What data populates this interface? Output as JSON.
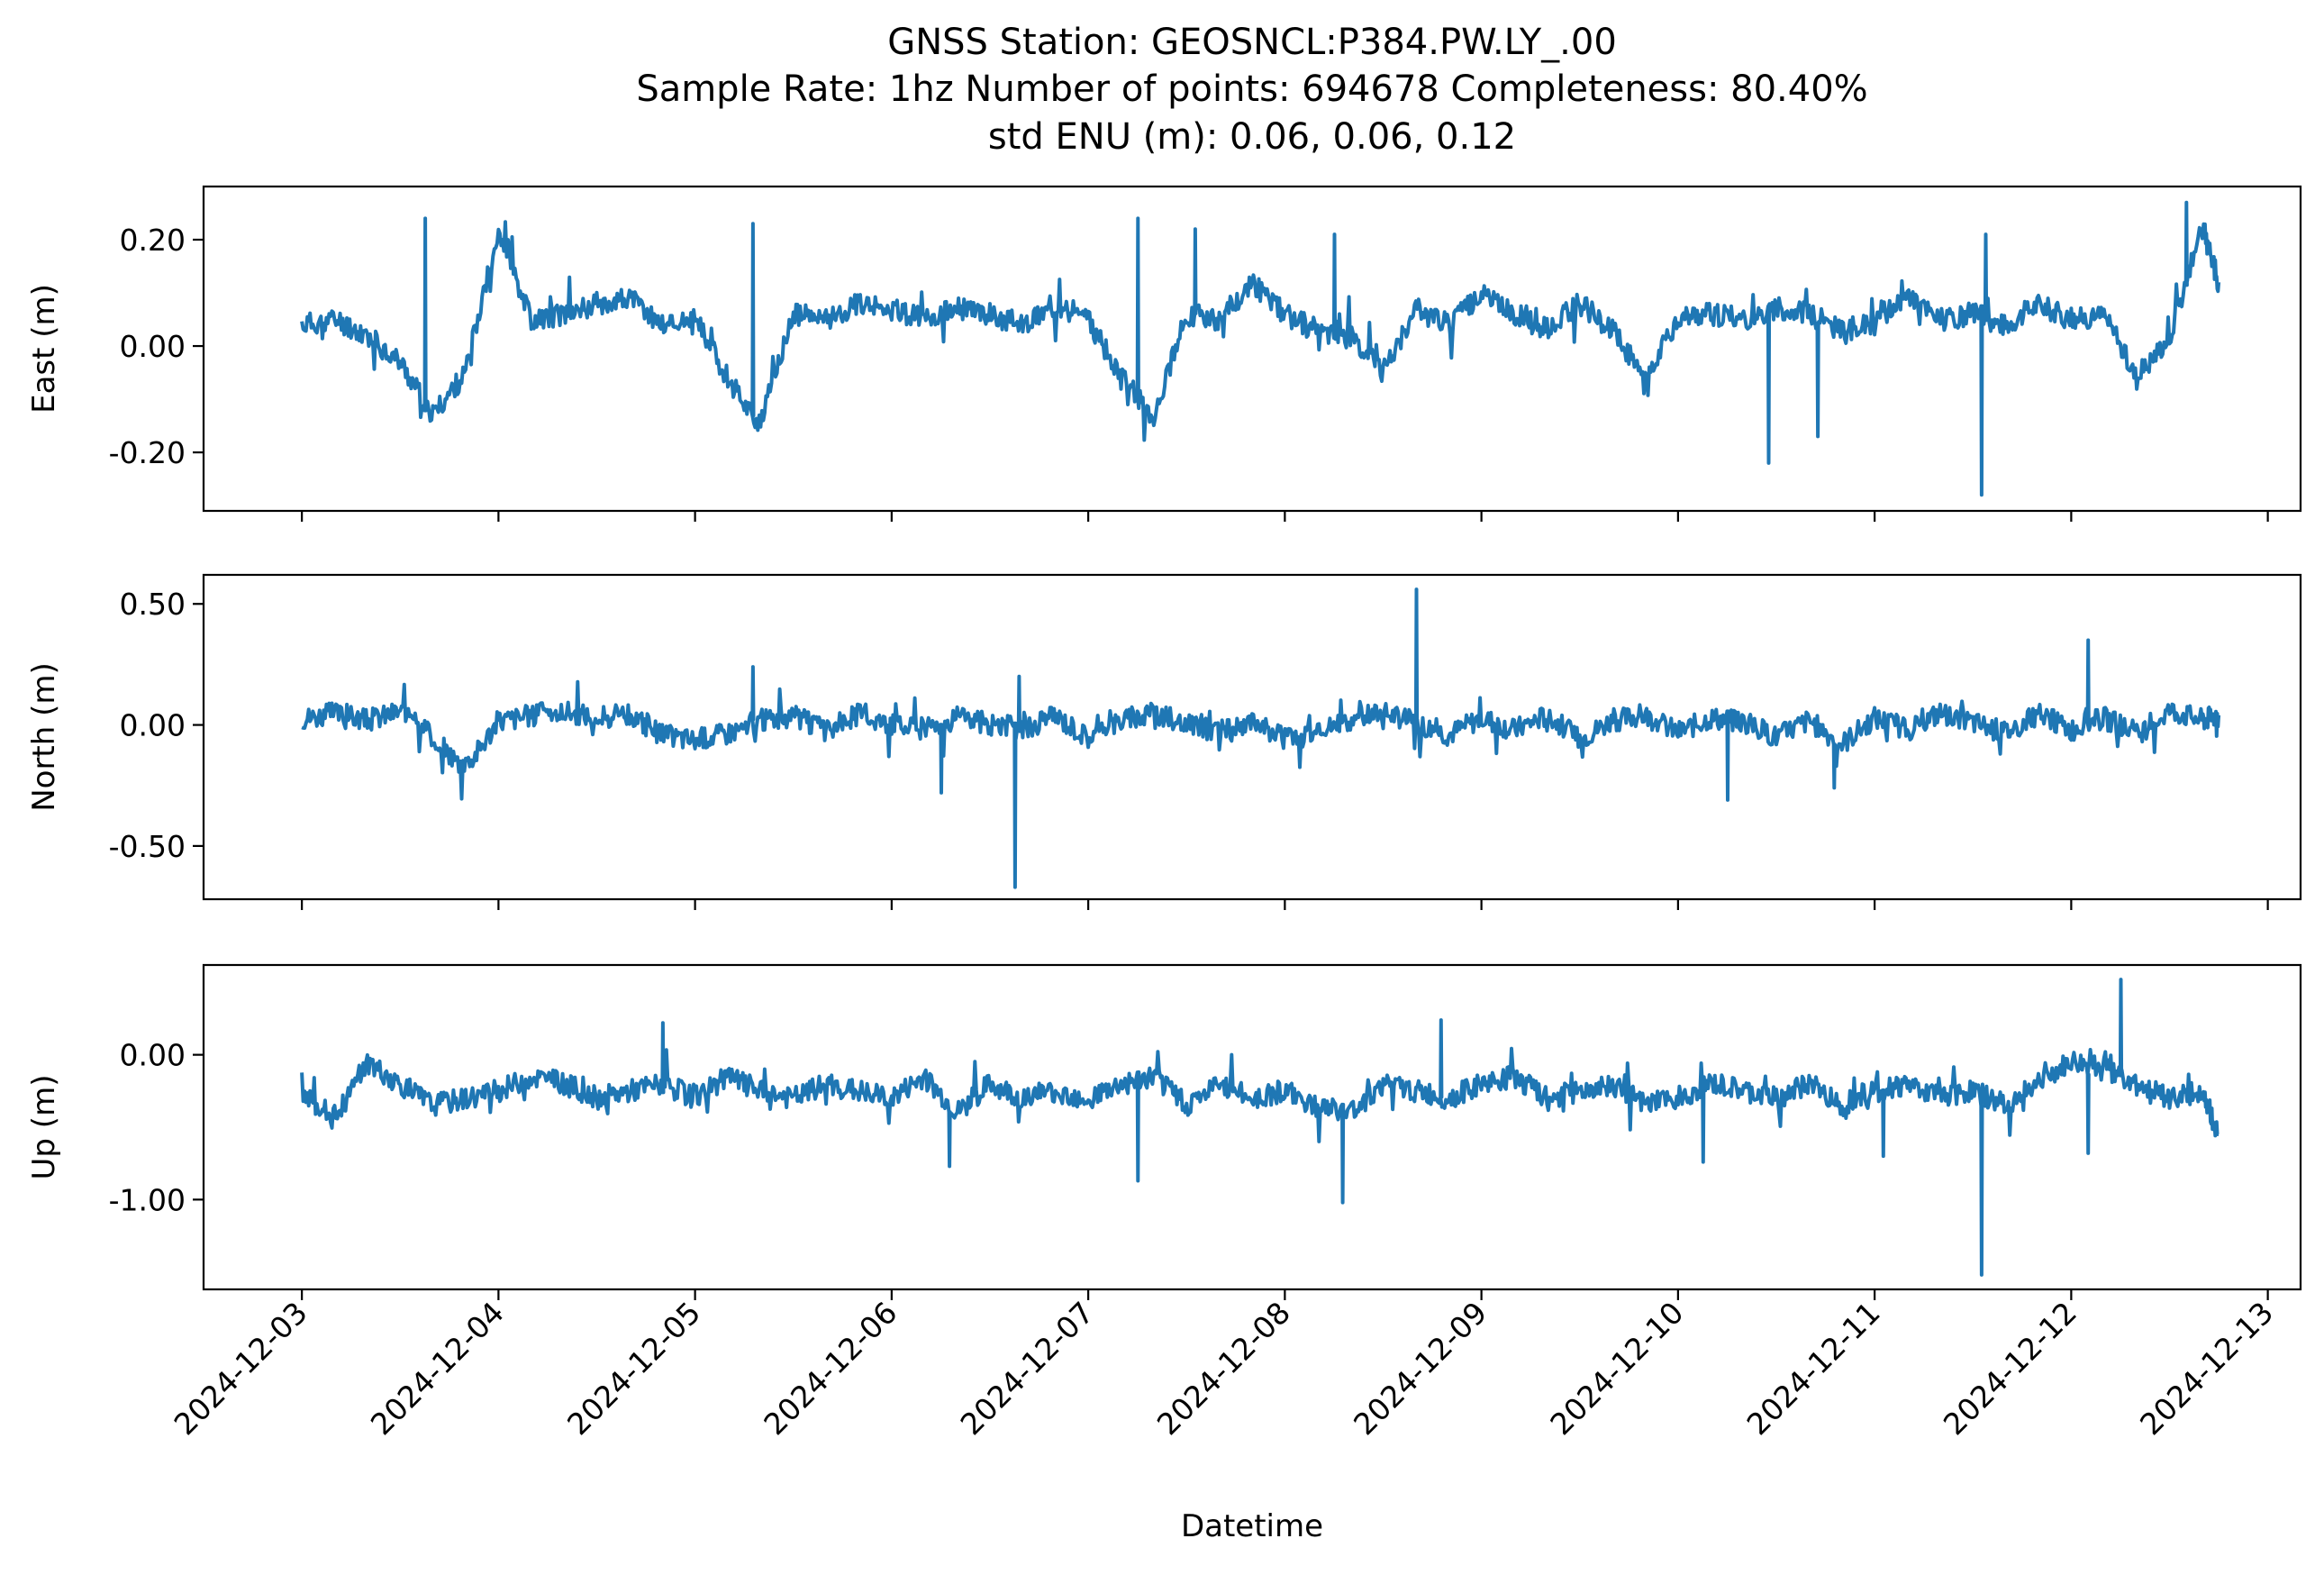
{
  "title": {
    "line1": "GNSS Station: GEOSNCL:P384.PW.LY_.00",
    "line2": "Sample Rate: 1hz   Number of points: 694678    Completeness:  80.40%",
    "line3": "std ENU (m):  0.06, 0.06, 0.12"
  },
  "xlabel": "Datetime",
  "colors": {
    "series": "#1f77b4",
    "axes": "#000000",
    "background": "#ffffff"
  },
  "chart_data": [
    {
      "type": "line",
      "panel": "east",
      "ylabel": "East (m)",
      "ylim": [
        -0.31,
        0.3
      ],
      "yticks": [
        0.2,
        0.0,
        -0.2
      ],
      "ytick_labels": [
        "0.20",
        "0.00",
        "-0.20"
      ],
      "xlim": [
        "2024-12-02T12:00",
        "2024-12-13T04:00"
      ],
      "xticks": [
        "2024-12-03",
        "2024-12-04",
        "2024-12-05",
        "2024-12-06",
        "2024-12-07",
        "2024-12-08",
        "2024-12-09",
        "2024-12-10",
        "2024-12-11",
        "2024-12-12",
        "2024-12-13"
      ],
      "show_xtick_labels": false,
      "series": [
        {
          "x": [
            "2024-12-03T00:00",
            "2024-12-03T04:00",
            "2024-12-03T08:00",
            "2024-12-03T12:00",
            "2024-12-03T16:00",
            "2024-12-03T20:00",
            "2024-12-04T00:00",
            "2024-12-04T04:00",
            "2024-12-04T08:00",
            "2024-12-04T12:00",
            "2024-12-04T16:00",
            "2024-12-04T20:00",
            "2024-12-05T00:00",
            "2024-12-05T04:00",
            "2024-12-05T08:00",
            "2024-12-05T12:00",
            "2024-12-05T16:00",
            "2024-12-05T20:00",
            "2024-12-06T00:00",
            "2024-12-06T04:00",
            "2024-12-06T08:00",
            "2024-12-06T12:00",
            "2024-12-06T16:00",
            "2024-12-06T20:00",
            "2024-12-07T00:00",
            "2024-12-07T04:00",
            "2024-12-07T08:00",
            "2024-12-07T12:00",
            "2024-12-07T16:00",
            "2024-12-07T20:00",
            "2024-12-08T00:00",
            "2024-12-08T04:00",
            "2024-12-08T08:00",
            "2024-12-08T12:00",
            "2024-12-08T16:00",
            "2024-12-08T20:00",
            "2024-12-09T00:00",
            "2024-12-09T04:00",
            "2024-12-09T08:00",
            "2024-12-09T12:00",
            "2024-12-09T16:00",
            "2024-12-09T20:00",
            "2024-12-10T00:00",
            "2024-12-10T04:00",
            "2024-12-10T08:00",
            "2024-12-10T12:00",
            "2024-12-10T16:00",
            "2024-12-10T20:00",
            "2024-12-11T00:00",
            "2024-12-11T04:00",
            "2024-12-11T08:00",
            "2024-12-11T12:00",
            "2024-12-11T16:00",
            "2024-12-11T20:00",
            "2024-12-12T00:00",
            "2024-12-12T04:00",
            "2024-12-12T08:00",
            "2024-12-12T12:00",
            "2024-12-12T16:00",
            "2024-12-12T18:00"
          ],
          "y": [
            0.04,
            0.05,
            0.02,
            -0.03,
            -0.13,
            -0.05,
            0.22,
            0.05,
            0.06,
            0.08,
            0.09,
            0.04,
            0.05,
            -0.06,
            -0.15,
            0.06,
            0.05,
            0.08,
            0.07,
            0.05,
            0.07,
            0.06,
            0.04,
            0.08,
            0.05,
            -0.06,
            -0.13,
            0.06,
            0.05,
            0.12,
            0.06,
            0.03,
            0.02,
            -0.05,
            0.07,
            0.04,
            0.1,
            0.06,
            0.03,
            0.08,
            0.03,
            -0.06,
            0.05,
            0.06,
            0.05,
            0.07,
            0.06,
            0.03,
            0.04,
            0.1,
            0.05,
            0.06,
            0.04,
            0.08,
            0.05,
            0.06,
            -0.06,
            0.02,
            0.22,
            0.12
          ],
          "spikes": [
            [
              "2024-12-03T15:00",
              0.24
            ],
            [
              "2024-12-05T07:00",
              0.23
            ],
            [
              "2024-12-07T06:00",
              0.24
            ],
            [
              "2024-12-07T13:00",
              0.22
            ],
            [
              "2024-12-08T06:00",
              0.21
            ],
            [
              "2024-12-10T11:00",
              -0.22
            ],
            [
              "2024-12-10T17:00",
              -0.17
            ],
            [
              "2024-12-11T13:00",
              -0.28
            ],
            [
              "2024-12-11T13:30",
              0.21
            ],
            [
              "2024-12-12T14:00",
              0.27
            ]
          ]
        }
      ]
    },
    {
      "type": "line",
      "panel": "north",
      "ylabel": "North (m)",
      "ylim": [
        -0.72,
        0.62
      ],
      "yticks": [
        0.5,
        0.0,
        -0.5
      ],
      "ytick_labels": [
        "0.50",
        "0.00",
        "-0.50"
      ],
      "xlim": [
        "2024-12-02T12:00",
        "2024-12-13T04:00"
      ],
      "xticks": [
        "2024-12-03",
        "2024-12-04",
        "2024-12-05",
        "2024-12-06",
        "2024-12-07",
        "2024-12-08",
        "2024-12-09",
        "2024-12-10",
        "2024-12-11",
        "2024-12-12",
        "2024-12-13"
      ],
      "show_xtick_labels": false,
      "series": [
        {
          "x": [
            "2024-12-03T00:00",
            "2024-12-03T04:00",
            "2024-12-03T08:00",
            "2024-12-03T12:00",
            "2024-12-03T16:00",
            "2024-12-03T20:00",
            "2024-12-04T00:00",
            "2024-12-04T04:00",
            "2024-12-04T08:00",
            "2024-12-04T12:00",
            "2024-12-04T16:00",
            "2024-12-04T20:00",
            "2024-12-05T00:00",
            "2024-12-05T04:00",
            "2024-12-05T08:00",
            "2024-12-05T12:00",
            "2024-12-05T16:00",
            "2024-12-05T20:00",
            "2024-12-06T00:00",
            "2024-12-06T04:00",
            "2024-12-06T08:00",
            "2024-12-06T12:00",
            "2024-12-06T16:00",
            "2024-12-06T20:00",
            "2024-12-07T00:00",
            "2024-12-07T04:00",
            "2024-12-07T08:00",
            "2024-12-07T12:00",
            "2024-12-07T16:00",
            "2024-12-07T20:00",
            "2024-12-08T00:00",
            "2024-12-08T04:00",
            "2024-12-08T08:00",
            "2024-12-08T12:00",
            "2024-12-08T16:00",
            "2024-12-08T20:00",
            "2024-12-09T00:00",
            "2024-12-09T04:00",
            "2024-12-09T08:00",
            "2024-12-09T12:00",
            "2024-12-09T16:00",
            "2024-12-09T20:00",
            "2024-12-10T00:00",
            "2024-12-10T04:00",
            "2024-12-10T08:00",
            "2024-12-10T12:00",
            "2024-12-10T16:00",
            "2024-12-10T20:00",
            "2024-12-11T00:00",
            "2024-12-11T04:00",
            "2024-12-11T08:00",
            "2024-12-11T12:00",
            "2024-12-11T16:00",
            "2024-12-11T20:00",
            "2024-12-12T00:00",
            "2024-12-12T04:00",
            "2024-12-12T08:00",
            "2024-12-12T12:00",
            "2024-12-12T16:00",
            "2024-12-12T18:00"
          ],
          "y": [
            0.03,
            0.05,
            0.02,
            0.06,
            -0.05,
            -0.18,
            0.02,
            0.04,
            0.06,
            0.03,
            0.05,
            -0.04,
            -0.06,
            -0.03,
            0.02,
            0.04,
            -0.03,
            0.05,
            0.0,
            -0.02,
            0.03,
            0.01,
            -0.02,
            0.04,
            -0.05,
            0.02,
            0.05,
            0.0,
            -0.03,
            0.02,
            -0.06,
            -0.04,
            0.02,
            0.05,
            0.01,
            -0.04,
            0.03,
            -0.02,
            0.04,
            -0.06,
            0.02,
            0.04,
            -0.03,
            0.03,
            0.01,
            -0.05,
            0.02,
            -0.08,
            0.03,
            -0.02,
            0.05,
            0.01,
            -0.03,
            0.04,
            -0.02,
            0.03,
            -0.04,
            0.06,
            0.02,
            0.04
          ],
          "spikes": [
            [
              "2024-12-05T07:00",
              0.24
            ],
            [
              "2024-12-06T06:00",
              -0.28
            ],
            [
              "2024-12-06T15:00",
              -0.67
            ],
            [
              "2024-12-06T15:30",
              0.2
            ],
            [
              "2024-12-08T16:00",
              0.56
            ],
            [
              "2024-12-10T06:00",
              -0.31
            ],
            [
              "2024-12-10T19:00",
              -0.26
            ],
            [
              "2024-12-12T02:00",
              0.35
            ]
          ]
        }
      ]
    },
    {
      "type": "line",
      "panel": "up",
      "ylabel": "Up (m)",
      "ylim": [
        -1.62,
        0.62
      ],
      "yticks": [
        0.0,
        -1.0
      ],
      "ytick_labels": [
        "0.00",
        "-1.00"
      ],
      "xlim": [
        "2024-12-02T12:00",
        "2024-12-13T04:00"
      ],
      "xticks": [
        "2024-12-03",
        "2024-12-04",
        "2024-12-05",
        "2024-12-06",
        "2024-12-07",
        "2024-12-08",
        "2024-12-09",
        "2024-12-10",
        "2024-12-11",
        "2024-12-12",
        "2024-12-13"
      ],
      "xtick_labels": [
        "2024-12-03",
        "2024-12-04",
        "2024-12-05",
        "2024-12-06",
        "2024-12-07",
        "2024-12-08",
        "2024-12-09",
        "2024-12-10",
        "2024-12-11",
        "2024-12-12",
        "2024-12-13"
      ],
      "show_xtick_labels": true,
      "series": [
        {
          "x": [
            "2024-12-03T00:00",
            "2024-12-03T04:00",
            "2024-12-03T08:00",
            "2024-12-03T12:00",
            "2024-12-03T16:00",
            "2024-12-03T20:00",
            "2024-12-04T00:00",
            "2024-12-04T04:00",
            "2024-12-04T08:00",
            "2024-12-04T12:00",
            "2024-12-04T16:00",
            "2024-12-04T20:00",
            "2024-12-05T00:00",
            "2024-12-05T04:00",
            "2024-12-05T08:00",
            "2024-12-05T12:00",
            "2024-12-05T16:00",
            "2024-12-05T20:00",
            "2024-12-06T00:00",
            "2024-12-06T04:00",
            "2024-12-06T08:00",
            "2024-12-06T12:00",
            "2024-12-06T16:00",
            "2024-12-06T20:00",
            "2024-12-07T00:00",
            "2024-12-07T04:00",
            "2024-12-07T08:00",
            "2024-12-07T12:00",
            "2024-12-07T16:00",
            "2024-12-07T20:00",
            "2024-12-08T00:00",
            "2024-12-08T04:00",
            "2024-12-08T08:00",
            "2024-12-08T12:00",
            "2024-12-08T16:00",
            "2024-12-08T20:00",
            "2024-12-09T00:00",
            "2024-12-09T04:00",
            "2024-12-09T08:00",
            "2024-12-09T12:00",
            "2024-12-09T16:00",
            "2024-12-09T20:00",
            "2024-12-10T00:00",
            "2024-12-10T04:00",
            "2024-12-10T08:00",
            "2024-12-10T12:00",
            "2024-12-10T16:00",
            "2024-12-10T20:00",
            "2024-12-11T00:00",
            "2024-12-11T04:00",
            "2024-12-11T08:00",
            "2024-12-11T12:00",
            "2024-12-11T16:00",
            "2024-12-11T20:00",
            "2024-12-12T00:00",
            "2024-12-12T04:00",
            "2024-12-12T08:00",
            "2024-12-12T12:00",
            "2024-12-12T16:00",
            "2024-12-12T18:00"
          ],
          "y": [
            -0.25,
            -0.45,
            -0.05,
            -0.2,
            -0.35,
            -0.3,
            -0.25,
            -0.15,
            -0.2,
            -0.3,
            -0.25,
            -0.2,
            -0.3,
            -0.15,
            -0.25,
            -0.3,
            -0.2,
            -0.25,
            -0.3,
            -0.15,
            -0.4,
            -0.2,
            -0.3,
            -0.25,
            -0.3,
            -0.2,
            -0.15,
            -0.35,
            -0.2,
            -0.3,
            -0.25,
            -0.35,
            -0.4,
            -0.2,
            -0.25,
            -0.3,
            -0.2,
            -0.15,
            -0.3,
            -0.25,
            -0.2,
            -0.35,
            -0.3,
            -0.2,
            -0.25,
            -0.3,
            -0.2,
            -0.35,
            -0.25,
            -0.2,
            -0.3,
            -0.25,
            -0.35,
            -0.2,
            -0.05,
            -0.1,
            -0.2,
            -0.3,
            -0.25,
            -0.55
          ],
          "spikes": [
            [
              "2024-12-04T20:00",
              0.22
            ],
            [
              "2024-12-06T07:00",
              -0.77
            ],
            [
              "2024-12-07T06:00",
              -0.87
            ],
            [
              "2024-12-08T07:00",
              -1.02
            ],
            [
              "2024-12-08T19:00",
              0.24
            ],
            [
              "2024-12-10T03:00",
              -0.74
            ],
            [
              "2024-12-11T01:00",
              -0.7
            ],
            [
              "2024-12-11T13:00",
              -1.52
            ],
            [
              "2024-12-12T02:00",
              -0.68
            ],
            [
              "2024-12-12T06:00",
              0.52
            ]
          ]
        }
      ]
    }
  ]
}
